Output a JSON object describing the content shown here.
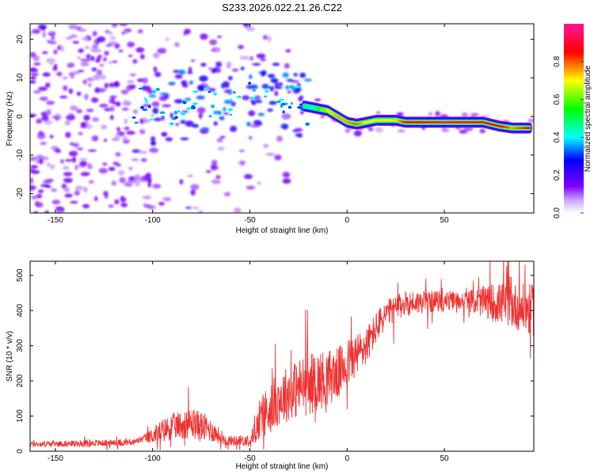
{
  "title": "S233.2026.022.21.26.C22",
  "chart_data": [
    {
      "type": "heatmap",
      "name": "spectrogram",
      "xlabel": "Height of straight line (km)",
      "ylabel": "Frequency (Hz)",
      "xlim": [
        -163,
        96
      ],
      "ylim": [
        -25,
        24
      ],
      "xticks": [
        -150,
        -100,
        -50,
        0,
        50
      ],
      "yticks": [
        -20,
        -10,
        0,
        10,
        20
      ],
      "colorbar": {
        "label": "Normalized spectral amplitude",
        "range": [
          0.0,
          1.0
        ],
        "ticks": [
          0.0,
          0.2,
          0.4,
          0.6,
          0.8
        ]
      },
      "ridge": [
        {
          "x": -125,
          "y": 3,
          "a": 0.3
        },
        {
          "x": -100,
          "y": 2,
          "a": 0.35
        },
        {
          "x": -85,
          "y": 3,
          "a": 0.45
        },
        {
          "x": -70,
          "y": 5,
          "a": 0.45
        },
        {
          "x": -55,
          "y": 4,
          "a": 0.45
        },
        {
          "x": -40,
          "y": 7,
          "a": 0.5
        },
        {
          "x": -30,
          "y": 5,
          "a": 0.45
        },
        {
          "x": -25,
          "y": 3,
          "a": 0.5
        },
        {
          "x": -15,
          "y": 2,
          "a": 0.55
        },
        {
          "x": -10,
          "y": 1.5,
          "a": 0.7
        },
        {
          "x": -5,
          "y": 0,
          "a": 0.75
        },
        {
          "x": 0,
          "y": -1.5,
          "a": 0.75
        },
        {
          "x": 5,
          "y": -2,
          "a": 0.8
        },
        {
          "x": 10,
          "y": -1.5,
          "a": 0.7
        },
        {
          "x": 15,
          "y": -1,
          "a": 0.7
        },
        {
          "x": 25,
          "y": -1,
          "a": 0.7
        },
        {
          "x": 30,
          "y": -1.5,
          "a": 0.85
        },
        {
          "x": 50,
          "y": -1.5,
          "a": 0.95
        },
        {
          "x": 70,
          "y": -1.5,
          "a": 0.9
        },
        {
          "x": 78,
          "y": -2.5,
          "a": 0.9
        },
        {
          "x": 85,
          "y": -3,
          "a": 0.75
        },
        {
          "x": 93,
          "y": -3,
          "a": 0.85
        }
      ]
    },
    {
      "type": "line",
      "name": "snr",
      "xlabel": "Height of straight line (km)",
      "ylabel": "SNR (10 * v/v)",
      "xlim": [
        -163,
        96
      ],
      "ylim": [
        0,
        540
      ],
      "xticks": [
        -150,
        -100,
        -50,
        0,
        50
      ],
      "yticks": [
        0,
        100,
        200,
        300,
        400,
        500
      ],
      "color": "#ee3333",
      "trend": [
        {
          "x": -163,
          "y": 20
        },
        {
          "x": -110,
          "y": 25
        },
        {
          "x": -100,
          "y": 45
        },
        {
          "x": -90,
          "y": 70
        },
        {
          "x": -80,
          "y": 80
        },
        {
          "x": -70,
          "y": 60
        },
        {
          "x": -62,
          "y": 30
        },
        {
          "x": -50,
          "y": 30
        },
        {
          "x": -42,
          "y": 110
        },
        {
          "x": -35,
          "y": 150
        },
        {
          "x": -25,
          "y": 180
        },
        {
          "x": -15,
          "y": 200
        },
        {
          "x": -5,
          "y": 220
        },
        {
          "x": 0,
          "y": 250
        },
        {
          "x": 10,
          "y": 300
        },
        {
          "x": 15,
          "y": 350
        },
        {
          "x": 20,
          "y": 390
        },
        {
          "x": 30,
          "y": 420
        },
        {
          "x": 40,
          "y": 425
        },
        {
          "x": 60,
          "y": 428
        },
        {
          "x": 80,
          "y": 420
        },
        {
          "x": 96,
          "y": 400
        }
      ],
      "noise": [
        {
          "x": -163,
          "y": 8
        },
        {
          "x": -105,
          "y": 10
        },
        {
          "x": -95,
          "y": 35
        },
        {
          "x": -75,
          "y": 45
        },
        {
          "x": -62,
          "y": 15
        },
        {
          "x": -50,
          "y": 15
        },
        {
          "x": -42,
          "y": 70
        },
        {
          "x": -20,
          "y": 90
        },
        {
          "x": 0,
          "y": 70
        },
        {
          "x": 20,
          "y": 40
        },
        {
          "x": 60,
          "y": 25
        },
        {
          "x": 75,
          "y": 55
        },
        {
          "x": 96,
          "y": 75
        }
      ]
    }
  ]
}
